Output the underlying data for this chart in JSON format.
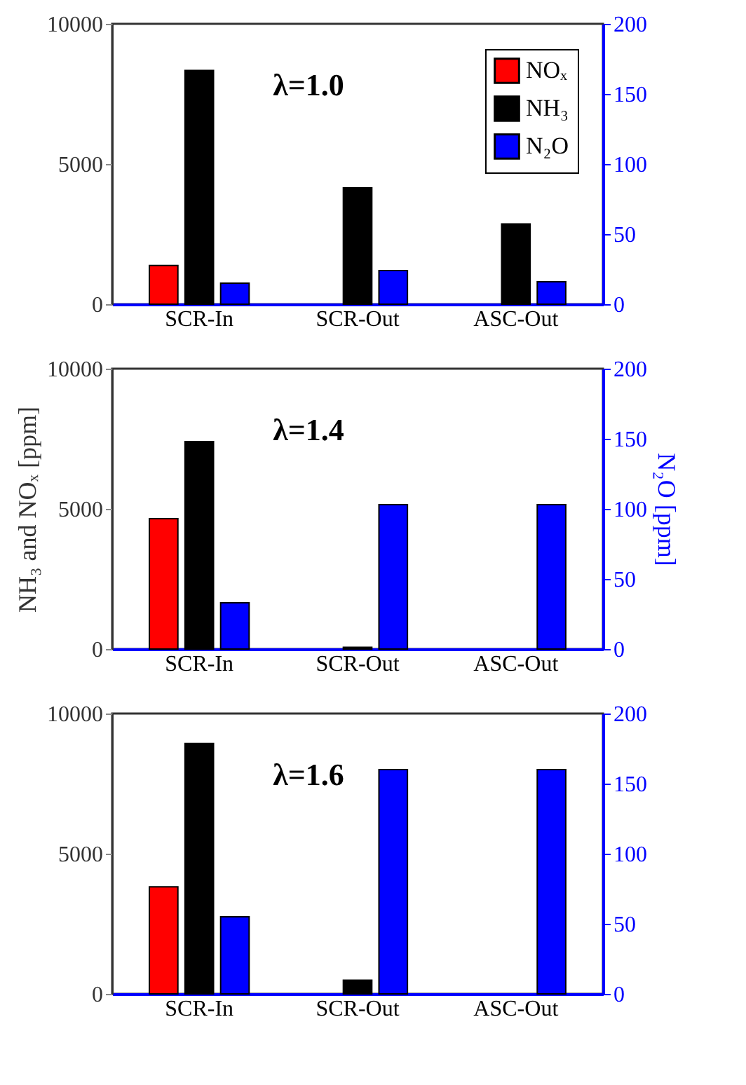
{
  "chart_data": [
    {
      "type": "bar",
      "categories": [
        "SCR-In",
        "SCR-Out",
        "ASC-Out"
      ],
      "series": [
        {
          "name": "NOₓ",
          "color": "#ff0000",
          "values": [
            1380,
            0,
            0
          ]
        },
        {
          "name": "NH₃",
          "color": "#000000",
          "values": [
            8340,
            4150,
            2860
          ]
        },
        {
          "name": "N₂O",
          "color": "#0000ff",
          "values": [
            15,
            24,
            16
          ],
          "axis": "y2"
        }
      ],
      "ylim": [
        0,
        10000
      ],
      "yticks": [
        0,
        5000,
        10000
      ],
      "y2lim": [
        0,
        200
      ],
      "y2ticks": [
        0,
        50,
        100,
        150,
        200
      ],
      "annotations": [
        "λ=1.0"
      ],
      "legend": "top right",
      "grid": false
    },
    {
      "type": "bar",
      "categories": [
        "SCR-In",
        "SCR-Out",
        "ASC-Out"
      ],
      "series": [
        {
          "color": "#ff0000",
          "values": [
            4650,
            0,
            0
          ]
        },
        {
          "color": "#000000",
          "values": [
            7400,
            60,
            0
          ]
        },
        {
          "color": "#0000ff",
          "values": [
            33,
            103,
            103
          ],
          "axis": "y2"
        }
      ],
      "ylabel": "NH₃ and NOₓ [ppm]",
      "y2label": "N₂O [ppm]",
      "ylim": [
        0,
        10000
      ],
      "yticks": [
        0,
        5000,
        10000
      ],
      "y2lim": [
        0,
        200
      ],
      "y2ticks": [
        0,
        50,
        100,
        150,
        200
      ],
      "annotations": [
        "λ=1.4"
      ],
      "legend": false,
      "grid": false
    },
    {
      "type": "bar",
      "categories": [
        "SCR-In",
        "SCR-Out",
        "ASC-Out"
      ],
      "series": [
        {
          "color": "#ff0000",
          "values": [
            3820,
            0,
            0
          ]
        },
        {
          "color": "#000000",
          "values": [
            8930,
            490,
            0
          ]
        },
        {
          "color": "#0000ff",
          "values": [
            55,
            160,
            160
          ],
          "axis": "y2"
        }
      ],
      "ylim": [
        0,
        10000
      ],
      "yticks": [
        0,
        5000,
        10000
      ],
      "y2lim": [
        0,
        200
      ],
      "y2ticks": [
        0,
        50,
        100,
        150,
        200
      ],
      "annotations": [
        "λ=1.6"
      ],
      "legend": false,
      "grid": false
    }
  ]
}
